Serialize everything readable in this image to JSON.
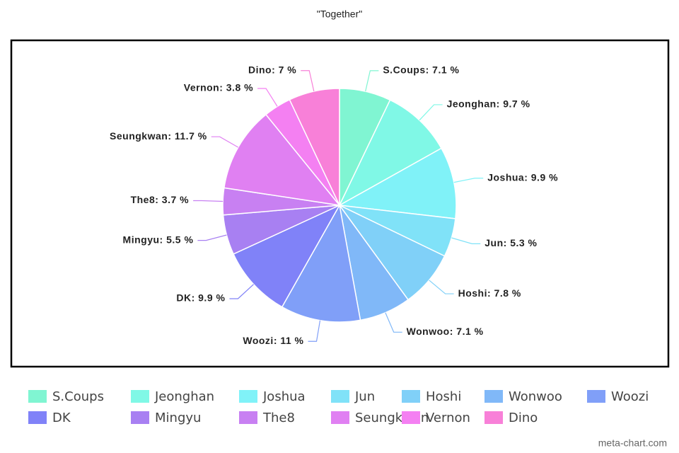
{
  "chart_data": {
    "type": "pie",
    "title": "\"Together\"",
    "categories": [
      "S.Coups",
      "Jeonghan",
      "Joshua",
      "Jun",
      "Hoshi",
      "Wonwoo",
      "Woozi",
      "DK",
      "Mingyu",
      "The8",
      "Seungkwan",
      "Vernon",
      "Dino"
    ],
    "values": [
      7.1,
      9.7,
      9.9,
      5.3,
      7.8,
      7.1,
      11,
      9.9,
      5.5,
      3.7,
      11.7,
      3.8,
      7
    ],
    "value_labels": [
      "S.Coups: 7.1 %",
      "Jeonghan: 9.7 %",
      "Joshua: 9.9 %",
      "Jun: 5.3 %",
      "Hoshi: 7.8 %",
      "Wonwoo: 7.1 %",
      "Woozi: 11 %",
      "DK: 9.9 %",
      "Mingyu: 5.5 %",
      "The8: 3.7 %",
      "Seungkwan: 11.7 %",
      "Vernon: 3.8 %",
      "Dino: 7 %"
    ],
    "colors": [
      "#80f5d2",
      "#80f8e6",
      "#80f2f8",
      "#80e2f8",
      "#80d0f8",
      "#80b8f8",
      "#809ff8",
      "#8082f8",
      "#a880f2",
      "#c880f2",
      "#e080f2",
      "#f480f2",
      "#f880d8"
    ],
    "watermark": "meta-chart.com"
  }
}
